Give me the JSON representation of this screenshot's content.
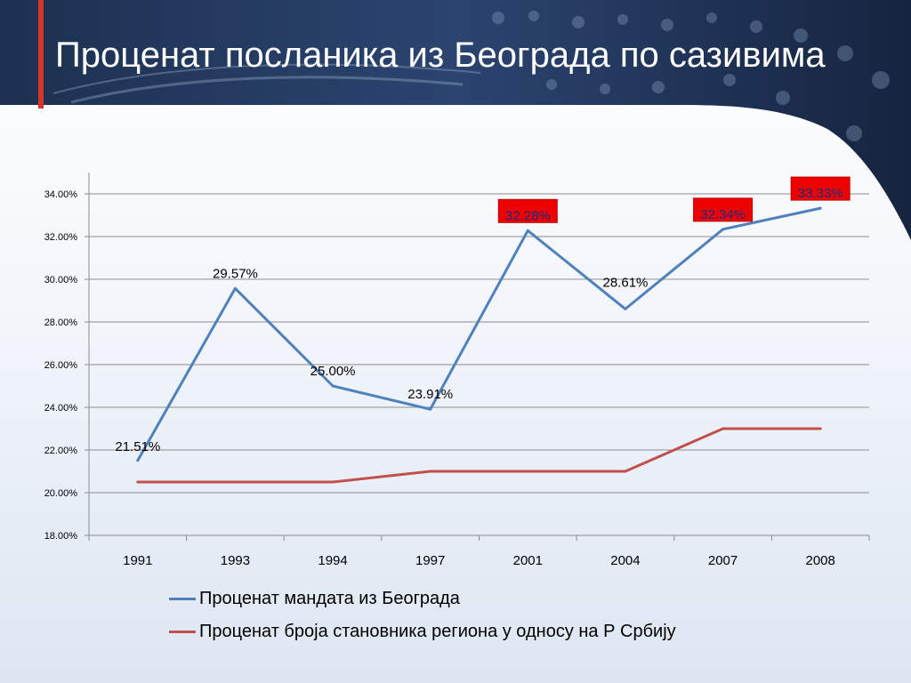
{
  "slide": {
    "title": "Проценат посланика из Београда по сазивима"
  },
  "colors": {
    "header_dark": "#0d1a33",
    "header_mid": "#2c4a78",
    "accent_bar": "#d8342c",
    "series1": "#4f81bd",
    "series2": "#c0504d",
    "highlight_box": "#ee0000"
  },
  "chart_data": {
    "type": "line",
    "categories": [
      "1991",
      "1993",
      "1994",
      "1997",
      "2001",
      "2004",
      "2007",
      "2008"
    ],
    "ylim": [
      0.18,
      0.34
    ],
    "y_ticks": [
      "18.00%",
      "20.00%",
      "22.00%",
      "24.00%",
      "26.00%",
      "28.00%",
      "30.00%",
      "32.00%",
      "34.00%"
    ],
    "grid": true,
    "legend_position": "bottom",
    "series": [
      {
        "name": "Проценат мандата из Београда",
        "values": [
          0.2151,
          0.2957,
          0.25,
          0.2391,
          0.3228,
          0.2861,
          0.3234,
          0.3333
        ],
        "data_labels": [
          "21.51%",
          "29.57%",
          "25.00%",
          "23.91%",
          "32.28%",
          "28.61%",
          "32.34%",
          "33.33%"
        ],
        "highlighted_labels": [
          false,
          false,
          false,
          false,
          true,
          false,
          true,
          true
        ],
        "color": "#4f81bd"
      },
      {
        "name": "Проценат броја становника региона у односу на Р Србију",
        "values": [
          0.205,
          0.205,
          0.205,
          0.21,
          0.21,
          0.21,
          0.23,
          0.23
        ],
        "color": "#c0504d"
      }
    ]
  }
}
